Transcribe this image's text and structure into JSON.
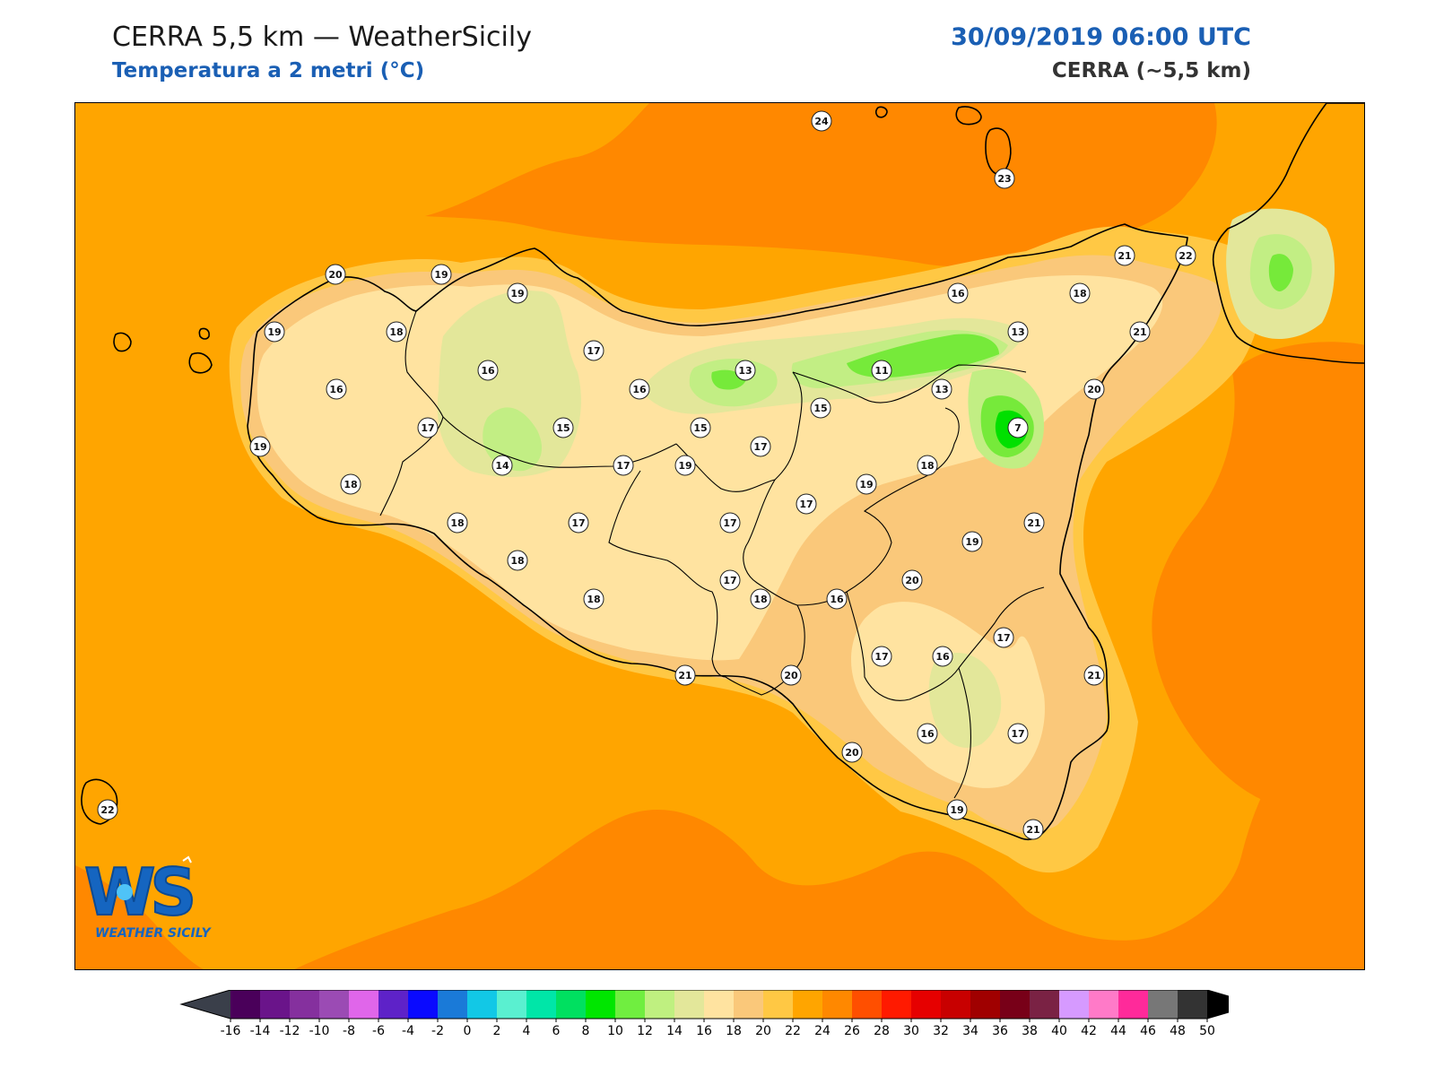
{
  "header": {
    "title": "CERRA 5,5 km — WeatherSicily",
    "subtitle": "Temperatura a 2 metri (°C)",
    "datetime": "30/09/2019 06:00 UTC",
    "model": "CERRA (~5,5 km)"
  },
  "logo": {
    "letters": "WS",
    "text": "WEATHER SICILY"
  },
  "colors": {
    "sea": "#ffa500",
    "warm_sea": "#ff8800",
    "coast_band": "#ffc844",
    "land_16": "#ffe3a0",
    "land_18": "#fac87a",
    "land_14": "#e3e79a",
    "land_12": "#c2ee84",
    "land_10": "#76ea3a",
    "land_8": "#00e000",
    "title_blue": "#1a5fb4"
  },
  "stations": [
    {
      "v": "24"
    },
    {
      "v": "23"
    },
    {
      "v": "20"
    },
    {
      "v": "19"
    },
    {
      "v": "19"
    },
    {
      "v": "19"
    },
    {
      "v": "18"
    },
    {
      "v": "16"
    },
    {
      "v": "17"
    },
    {
      "v": "16"
    },
    {
      "v": "17"
    },
    {
      "v": "15"
    },
    {
      "v": "14"
    },
    {
      "v": "19"
    },
    {
      "v": "18"
    },
    {
      "v": "18"
    },
    {
      "v": "18"
    },
    {
      "v": "18"
    },
    {
      "v": "17"
    },
    {
      "v": "17"
    },
    {
      "v": "16"
    },
    {
      "v": "13"
    },
    {
      "v": "15"
    },
    {
      "v": "17"
    },
    {
      "v": "19"
    },
    {
      "v": "17"
    },
    {
      "v": "17"
    },
    {
      "v": "17"
    },
    {
      "v": "18"
    },
    {
      "v": "21"
    },
    {
      "v": "20"
    },
    {
      "v": "16"
    },
    {
      "v": "11"
    },
    {
      "v": "13"
    },
    {
      "v": "15"
    },
    {
      "v": "19"
    },
    {
      "v": "16"
    },
    {
      "v": "13"
    },
    {
      "v": "7"
    },
    {
      "v": "18"
    },
    {
      "v": "19"
    },
    {
      "v": "20"
    },
    {
      "v": "21"
    },
    {
      "v": "22"
    },
    {
      "v": "18"
    },
    {
      "v": "21"
    },
    {
      "v": "20"
    },
    {
      "v": "21"
    },
    {
      "v": "17"
    },
    {
      "v": "16"
    },
    {
      "v": "21"
    },
    {
      "v": "17"
    },
    {
      "v": "16"
    },
    {
      "v": "17"
    },
    {
      "v": "20"
    },
    {
      "v": "19"
    },
    {
      "v": "21"
    },
    {
      "v": "22"
    }
  ],
  "colorbar": {
    "colors": [
      "#4a005a",
      "#6a148a",
      "#85309e",
      "#9b4bb4",
      "#e066ea",
      "#5e22c8",
      "#0a0aff",
      "#1a7ad8",
      "#12c8e6",
      "#5af0d0",
      "#00e6a8",
      "#00e060",
      "#00e600",
      "#70ee40",
      "#bff080",
      "#e3e79a",
      "#ffe3a0",
      "#fac87a",
      "#ffc844",
      "#ffa500",
      "#ff8800",
      "#ff4f00",
      "#ff1a00",
      "#e60000",
      "#c80000",
      "#a00000",
      "#780018",
      "#7a2244",
      "#d69aff",
      "#ff7ac8",
      "#ff2a9a",
      "#777777",
      "#333333"
    ],
    "under": "#3a3f4a",
    "over": "#000000",
    "labels": [
      "-16",
      "-14",
      "-12",
      "-10",
      "-8",
      "-6",
      "-4",
      "-2",
      "0",
      "2",
      "4",
      "6",
      "8",
      "10",
      "12",
      "14",
      "16",
      "18",
      "20",
      "22",
      "24",
      "26",
      "28",
      "30",
      "32",
      "34",
      "36",
      "38",
      "40",
      "42",
      "44",
      "46",
      "48",
      "50"
    ]
  }
}
